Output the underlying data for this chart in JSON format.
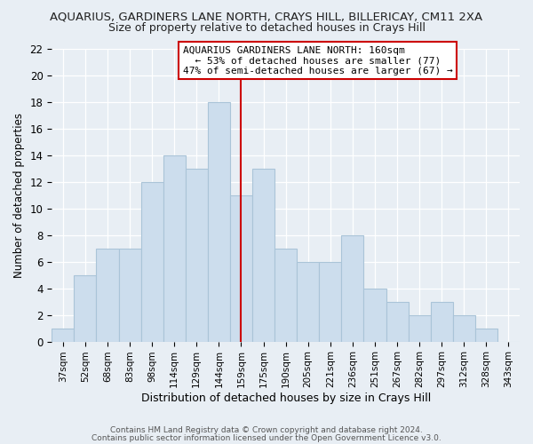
{
  "title": "AQUARIUS, GARDINERS LANE NORTH, CRAYS HILL, BILLERICAY, CM11 2XA",
  "subtitle": "Size of property relative to detached houses in Crays Hill",
  "xlabel": "Distribution of detached houses by size in Crays Hill",
  "ylabel": "Number of detached properties",
  "bar_labels": [
    "37sqm",
    "52sqm",
    "68sqm",
    "83sqm",
    "98sqm",
    "114sqm",
    "129sqm",
    "144sqm",
    "159sqm",
    "175sqm",
    "190sqm",
    "205sqm",
    "221sqm",
    "236sqm",
    "251sqm",
    "267sqm",
    "282sqm",
    "297sqm",
    "312sqm",
    "328sqm",
    "343sqm"
  ],
  "bar_values": [
    1,
    5,
    7,
    7,
    12,
    14,
    13,
    18,
    11,
    13,
    7,
    6,
    6,
    8,
    4,
    3,
    2,
    3,
    2,
    1,
    0
  ],
  "bar_color": "#ccdded",
  "bar_edge_color": "#aac4d8",
  "vline_x_index": 8,
  "vline_color": "#cc0000",
  "annotation_title": "AQUARIUS GARDINERS LANE NORTH: 160sqm",
  "annotation_line1": "← 53% of detached houses are smaller (77)",
  "annotation_line2": "47% of semi-detached houses are larger (67) →",
  "annotation_box_color": "#ffffff",
  "annotation_box_edge": "#cc0000",
  "ylim": [
    0,
    22
  ],
  "yticks": [
    0,
    2,
    4,
    6,
    8,
    10,
    12,
    14,
    16,
    18,
    20,
    22
  ],
  "footer1": "Contains HM Land Registry data © Crown copyright and database right 2024.",
  "footer2": "Contains public sector information licensed under the Open Government Licence v3.0.",
  "bg_color": "#e8eef4",
  "plot_bg_color": "#e8eef4",
  "grid_color": "#ffffff"
}
